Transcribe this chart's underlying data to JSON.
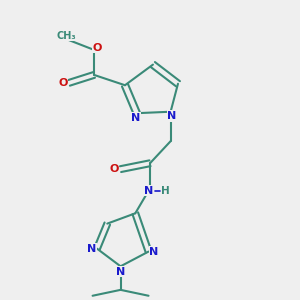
{
  "bg_color": "#efefef",
  "bond_color": "#3a8a78",
  "N_color": "#1a1acc",
  "O_color": "#cc1111",
  "lw": 1.5,
  "figsize": [
    3.0,
    3.0
  ],
  "dpi": 100,
  "xlim": [
    0,
    1
  ],
  "ylim": [
    0,
    1
  ]
}
